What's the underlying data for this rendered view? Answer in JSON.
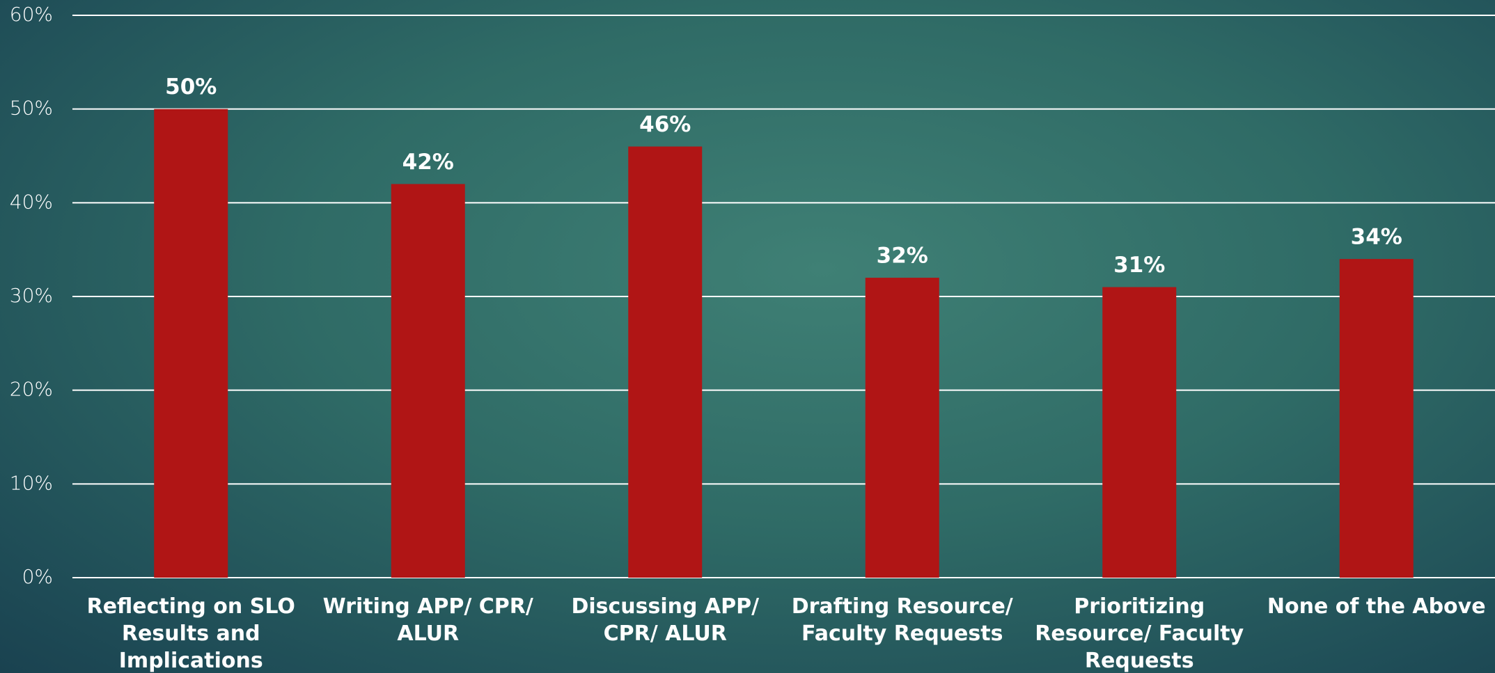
{
  "chart_data": {
    "type": "bar",
    "categories": [
      "Reflecting on SLO Results and Implications",
      "Writing APP/ CPR/ ALUR",
      "Discussing APP/ CPR/ ALUR",
      "Drafting Resource/ Faculty Requests",
      "Prioritizing Resource/ Faculty Requests",
      "None of the Above"
    ],
    "values": [
      50,
      42,
      46,
      32,
      31,
      34
    ],
    "value_labels": [
      "50%",
      "42%",
      "46%",
      "32%",
      "31%",
      "34%"
    ],
    "color": "#b01515",
    "ylim": [
      0,
      60
    ],
    "yticks": [
      {
        "value": 0,
        "label": "0%"
      },
      {
        "value": 10,
        "label": "10%"
      },
      {
        "value": 20,
        "label": "20%"
      },
      {
        "value": 30,
        "label": "30%"
      },
      {
        "value": 40,
        "label": "40%"
      },
      {
        "value": 50,
        "label": "50%"
      },
      {
        "value": 60,
        "label": "60%"
      }
    ],
    "grid": true
  }
}
